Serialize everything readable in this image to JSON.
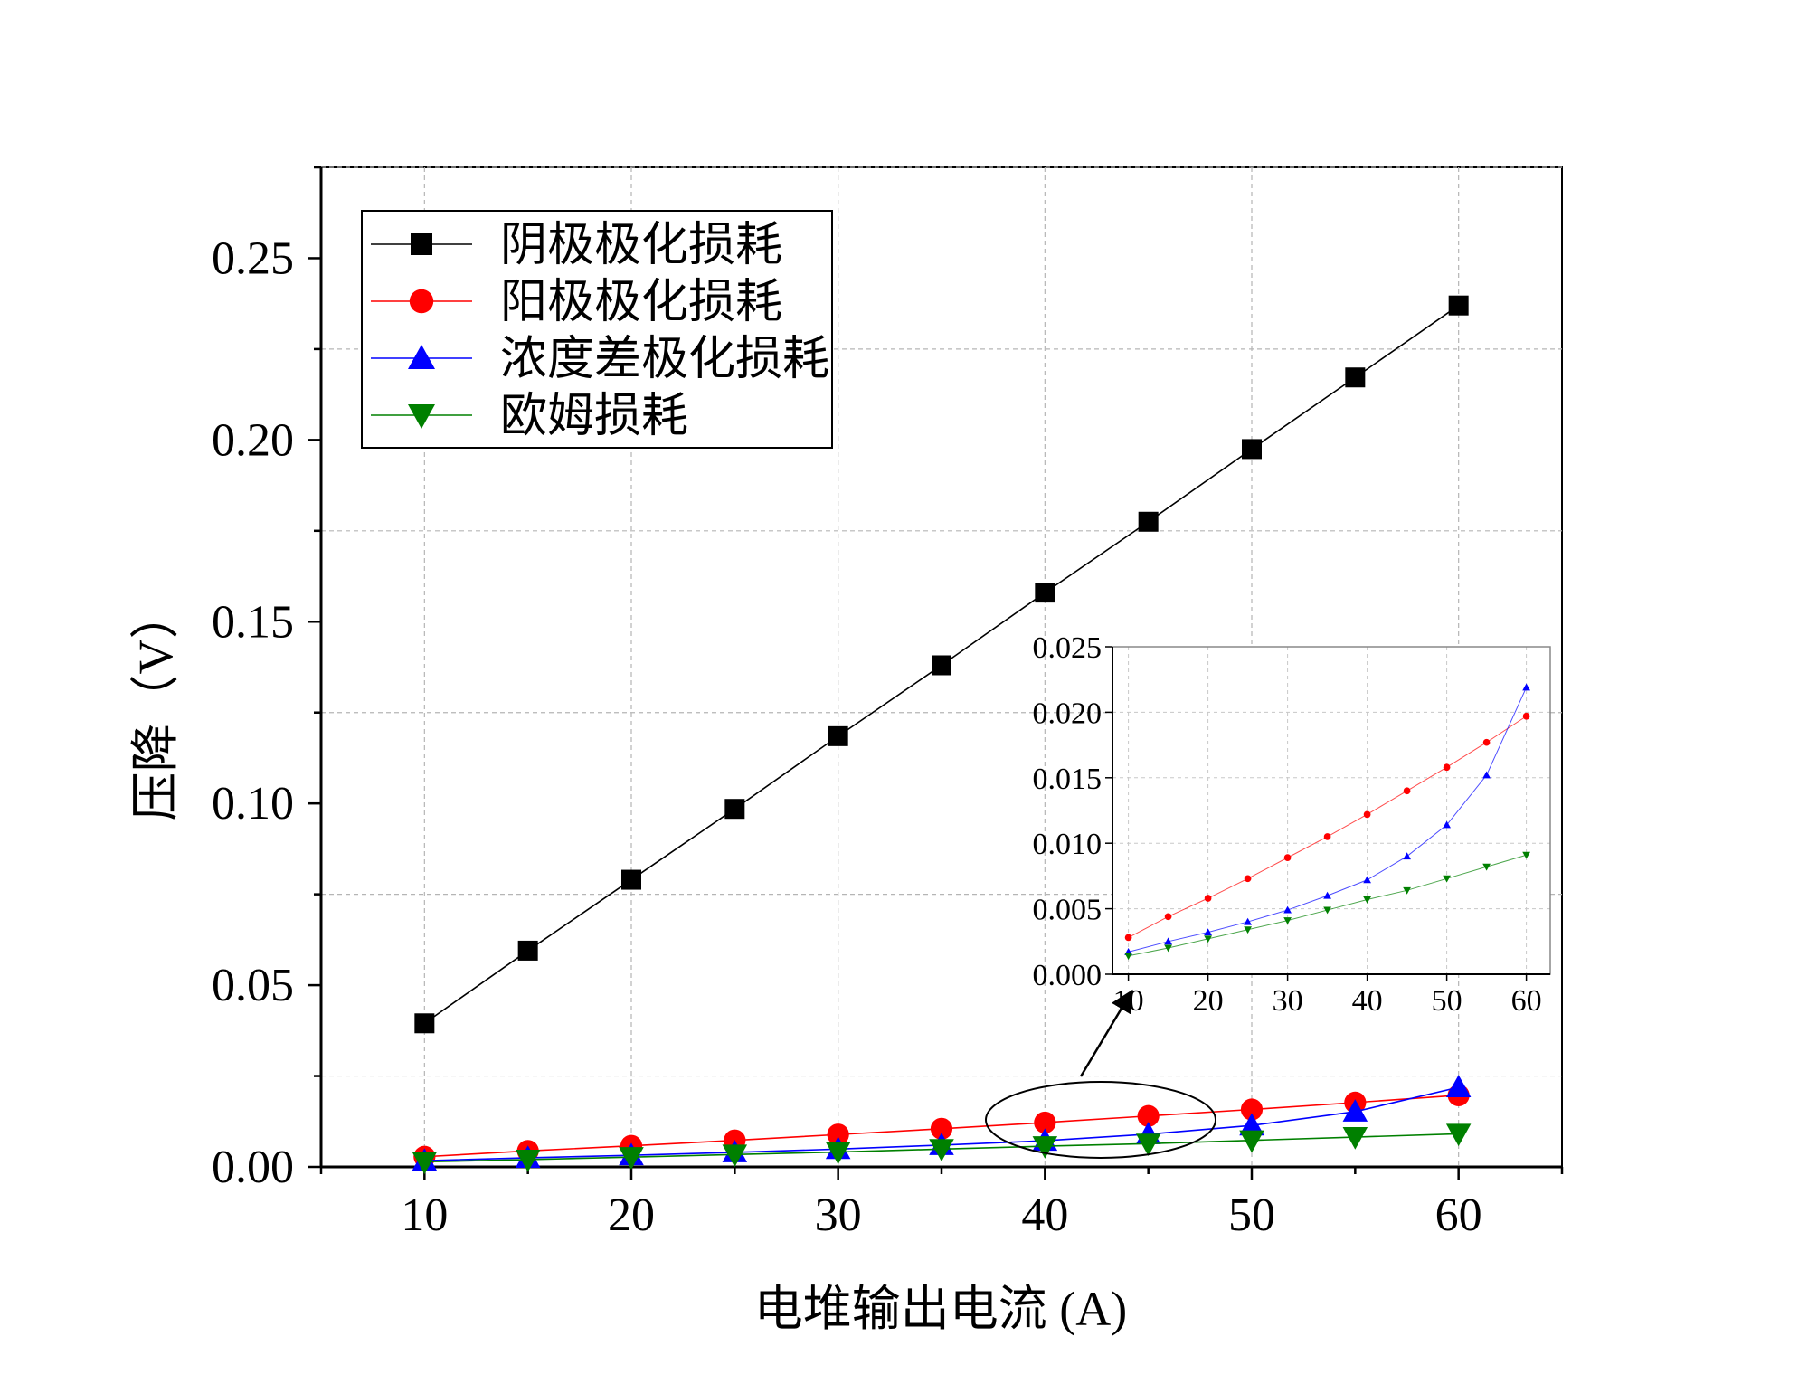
{
  "chart_data": {
    "type": "line",
    "xlabel": "电堆输出电流 (A)",
    "ylabel": "压降（V）",
    "xlim": [
      5,
      65
    ],
    "ylim": [
      0,
      0.275
    ],
    "xticks": [
      10,
      20,
      30,
      40,
      50,
      60
    ],
    "yticks": [
      0.0,
      0.05,
      0.1,
      0.15,
      0.2,
      0.25
    ],
    "ytick_labels": [
      "0.00",
      "0.05",
      "0.10",
      "0.15",
      "0.20",
      "0.25"
    ],
    "grid": true,
    "legend_position": "top-left",
    "x": [
      10,
      15,
      20,
      25,
      30,
      35,
      40,
      45,
      50,
      55,
      60
    ],
    "series": [
      {
        "name": "阴极极化损耗",
        "color": "#000000",
        "marker": "square",
        "values": [
          0.0395,
          0.0595,
          0.079,
          0.0985,
          0.1185,
          0.138,
          0.158,
          0.1775,
          0.1975,
          0.2172,
          0.237
        ]
      },
      {
        "name": "阳极极化损耗",
        "color": "#ff0000",
        "marker": "circle",
        "values": [
          0.0028,
          0.0044,
          0.0058,
          0.0073,
          0.0089,
          0.0105,
          0.0122,
          0.014,
          0.0158,
          0.0177,
          0.0197
        ]
      },
      {
        "name": "浓度差极化损耗",
        "color": "#0000ff",
        "marker": "triangle-up",
        "values": [
          0.0017,
          0.0025,
          0.0032,
          0.004,
          0.0049,
          0.006,
          0.0072,
          0.009,
          0.0114,
          0.0152,
          0.0219
        ]
      },
      {
        "name": "欧姆损耗",
        "color": "#008000",
        "marker": "triangle-down",
        "values": [
          0.0014,
          0.002,
          0.0027,
          0.0034,
          0.0041,
          0.0049,
          0.0057,
          0.0064,
          0.0073,
          0.0082,
          0.0091
        ]
      }
    ],
    "inset": {
      "xlim": [
        8,
        63
      ],
      "ylim": [
        0,
        0.025
      ],
      "xticks": [
        10,
        20,
        30,
        40,
        50,
        60
      ],
      "yticks": [
        0.0,
        0.005,
        0.01,
        0.015,
        0.02,
        0.025
      ],
      "ytick_labels": [
        "0.000",
        "0.005",
        "0.010",
        "0.015",
        "0.020",
        "0.025"
      ],
      "series_indices": [
        1,
        2,
        3
      ],
      "annotation": "ellipse around x 38–47 near y≈0 with arrow pointing to inset"
    }
  }
}
